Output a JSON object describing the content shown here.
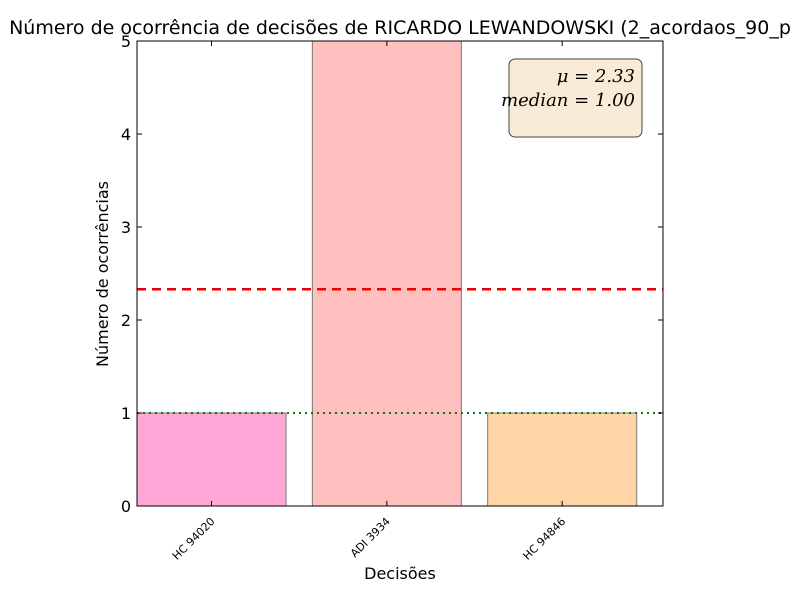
{
  "chart_data": {
    "type": "bar",
    "title": "Número de ocorrência de decisões de RICARDO LEWANDOWSKI (2_acordaos_90_p",
    "xlabel": "Decisões",
    "ylabel": "Número de ocorrências",
    "categories": [
      "HC 94020",
      "ADI 3934",
      "HC 94846"
    ],
    "values": [
      1,
      5,
      1
    ],
    "colors": [
      "#ffa6d6",
      "#ffbfbf",
      "#ffd5a8"
    ],
    "ylim": [
      0,
      5
    ],
    "yticks": [
      "0",
      "1",
      "2",
      "3",
      "4",
      "5"
    ],
    "mean": 2.33,
    "median": 1.0,
    "mean_line_color": "#ee0000",
    "median_line_color": "#117711",
    "stats_box": {
      "mean_text": "μ = 2.33",
      "median_text": "median = 1.00",
      "background": "#f8ecd6",
      "placement": "top-right"
    },
    "grid": false
  }
}
